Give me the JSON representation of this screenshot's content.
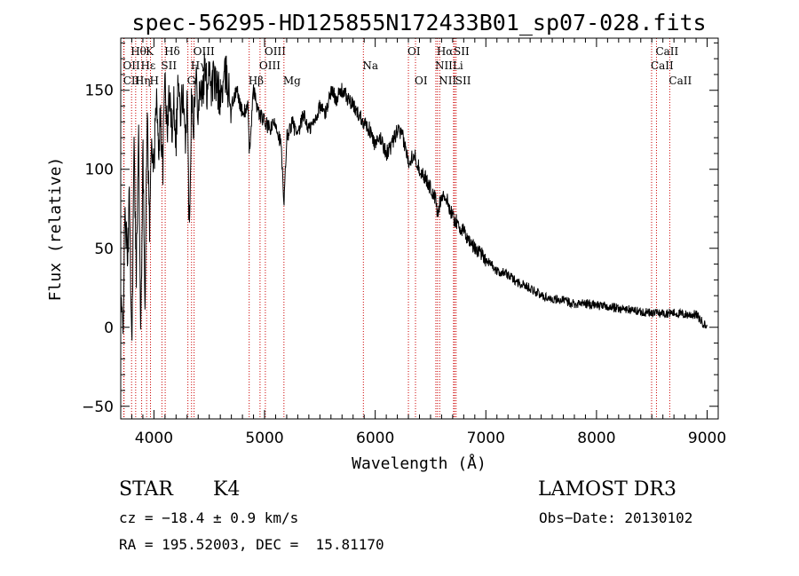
{
  "chart_data": {
    "type": "line",
    "title": "spec-56295-HD125855N172433B01_sp07-028.fits",
    "xlabel": "Wavelength (Å)",
    "ylabel": "Flux (relative)",
    "xlim": [
      3700,
      9100
    ],
    "ylim": [
      -58,
      183
    ],
    "xticks": [
      4000,
      5000,
      6000,
      7000,
      8000,
      9000
    ],
    "yticks": [
      -50,
      0,
      50,
      100,
      150
    ],
    "grid": false,
    "series": [
      {
        "values_x": [
          3700,
          3720,
          3740,
          3760,
          3780,
          3800,
          3820,
          3840,
          3860,
          3880,
          3900,
          3920,
          3940,
          3960,
          3980,
          4000,
          4020,
          4040,
          4060,
          4080,
          4100,
          4120,
          4140,
          4160,
          4180,
          4200,
          4220,
          4240,
          4260,
          4280,
          4300,
          4320,
          4340,
          4360,
          4380,
          4400,
          4420,
          4440,
          4460,
          4480,
          4500,
          4520,
          4540,
          4560,
          4580,
          4600,
          4650,
          4700,
          4750,
          4800,
          4850,
          4861,
          4900,
          4950,
          5000,
          5050,
          5100,
          5150,
          5175,
          5200,
          5250,
          5300,
          5350,
          5400,
          5450,
          5500,
          5550,
          5600,
          5650,
          5700,
          5750,
          5800,
          5850,
          5900,
          5950,
          6000,
          6050,
          6100,
          6150,
          6200,
          6250,
          6300,
          6350,
          6400,
          6450,
          6500,
          6550,
          6563,
          6600,
          6650,
          6700,
          6750,
          6800,
          6850,
          6900,
          6950,
          7000,
          7050,
          7100,
          7150,
          7200,
          7300,
          7400,
          7500,
          7600,
          7700,
          7800,
          7900,
          8000,
          8100,
          8200,
          8300,
          8400,
          8500,
          8600,
          8700,
          8800,
          8900,
          8960,
          9000
        ],
        "values_y": [
          10,
          2,
          75,
          40,
          85,
          -15,
          115,
          30,
          130,
          -10,
          110,
          20,
          140,
          60,
          125,
          95,
          150,
          110,
          135,
          100,
          165,
          120,
          150,
          125,
          145,
          120,
          160,
          130,
          150,
          115,
          145,
          60,
          150,
          130,
          160,
          140,
          155,
          145,
          165,
          150,
          170,
          150,
          160,
          150,
          150,
          145,
          160,
          140,
          150,
          135,
          140,
          110,
          150,
          135,
          130,
          125,
          130,
          115,
          75,
          120,
          130,
          120,
          135,
          125,
          130,
          140,
          135,
          150,
          145,
          150,
          145,
          140,
          135,
          130,
          125,
          115,
          120,
          110,
          115,
          125,
          120,
          105,
          110,
          100,
          95,
          88,
          80,
          70,
          85,
          80,
          70,
          65,
          60,
          55,
          50,
          48,
          43,
          40,
          35,
          35,
          33,
          28,
          25,
          20,
          18,
          17,
          15,
          15,
          14,
          13,
          12,
          11,
          10,
          9,
          9,
          9,
          8,
          8,
          3,
          0
        ]
      }
    ],
    "lines": [
      {
        "label": "Hθ",
        "x": 3798,
        "row": 1
      },
      {
        "label": "K",
        "x": 3934,
        "row": 1
      },
      {
        "label": "Hδ",
        "x": 4102,
        "row": 1
      },
      {
        "label": "OII",
        "x": 3727,
        "row": 2
      },
      {
        "label": "Hε",
        "x": 3889,
        "row": 2
      },
      {
        "label": "SII",
        "x": 4072,
        "row": 2
      },
      {
        "label": "CII",
        "x": 3730,
        "row": 3
      },
      {
        "label": "Hη",
        "x": 3835,
        "row": 3
      },
      {
        "label": "H",
        "x": 3969,
        "row": 3
      },
      {
        "label": "OIII",
        "x": 4363,
        "row": 1
      },
      {
        "label": "Hγ",
        "x": 4340,
        "row": 2
      },
      {
        "label": "G",
        "x": 4307,
        "row": 3
      },
      {
        "label": "OIII",
        "x": 5007,
        "row": 1
      },
      {
        "label": "OIII",
        "x": 4959,
        "row": 2
      },
      {
        "label": "Hβ",
        "x": 4861,
        "row": 3
      },
      {
        "label": "Mg",
        "x": 5175,
        "row": 3
      },
      {
        "label": "Na",
        "x": 5893,
        "row": 2
      },
      {
        "label": "OI",
        "x": 6300,
        "row": 1
      },
      {
        "label": "OI",
        "x": 6364,
        "row": 3
      },
      {
        "label": "Hα",
        "x": 6563,
        "row": 1
      },
      {
        "label": "SII",
        "x": 6717,
        "row": 1
      },
      {
        "label": "NII",
        "x": 6548,
        "row": 2
      },
      {
        "label": "Li",
        "x": 6708,
        "row": 2
      },
      {
        "label": "NII",
        "x": 6583,
        "row": 3
      },
      {
        "label": "SII",
        "x": 6731,
        "row": 3
      },
      {
        "label": "CaII",
        "x": 8542,
        "row": 1
      },
      {
        "label": "CaII",
        "x": 8498,
        "row": 2
      },
      {
        "label": "CaII",
        "x": 8662,
        "row": 3
      }
    ],
    "line_color": "#cc0000"
  },
  "info": {
    "class_label": "STAR",
    "subclass": "K4",
    "survey": "LAMOST DR3",
    "cz": "cz = −18.4 ± 0.9 km/s",
    "obs_date": "Obs−Date: 20130102",
    "radec": "RA = 195.52003, DEC =  15.81170"
  }
}
